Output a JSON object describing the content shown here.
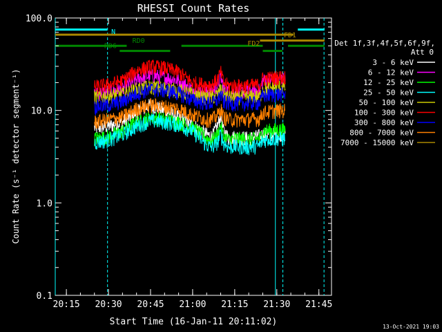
{
  "chart_data": {
    "type": "line",
    "title": "RHESSI Count Rates",
    "xlabel": "Start Time (16-Jan-11 20:11:02)",
    "ylabel": "Count Rate (s⁻¹ detector segment⁻¹)",
    "yscale": "log",
    "ylim": [
      0.1,
      100
    ],
    "xlim": [
      "20:11:02",
      "21:49:30"
    ],
    "y_tick_labels": [
      "0.1",
      "1.0",
      "10.0",
      "100.0"
    ],
    "y_ticks": [
      0.1,
      1,
      10,
      100
    ],
    "x_tick_labels": [
      "20:15",
      "20:30",
      "20:45",
      "21:00",
      "21:15",
      "21:30",
      "21:45"
    ],
    "x_ticks": [
      "20:15",
      "20:30",
      "20:45",
      "21:00",
      "21:15",
      "21:30",
      "21:45"
    ],
    "grid": false,
    "legend_position": "right",
    "legend_header": [
      "Det 1f,3f,4f,5f,6f,9f,",
      "Att 0"
    ],
    "timestamp": "13-Oct-2021 19:03",
    "series": [
      {
        "name": "3 - 6 keV",
        "color": "#ffffff",
        "times": [
          "20:25",
          "20:30",
          "20:35",
          "20:40",
          "20:45",
          "20:50",
          "20:55",
          "21:00",
          "21:05",
          "21:07",
          "21:09",
          "21:10",
          "21:11",
          "21:13",
          "21:15",
          "21:20",
          "21:24",
          "21:25",
          "21:30",
          "21:33"
        ],
        "values": [
          6.5,
          6.8,
          7.5,
          9.5,
          11.5,
          10,
          8.5,
          7,
          5.5,
          5.2,
          7,
          9,
          6,
          5,
          5.2,
          5,
          5.3,
          5.5,
          5.5,
          5.8
        ]
      },
      {
        "name": "6 - 12 keV",
        "color": "#ff00ff",
        "times": [
          "20:25",
          "20:30",
          "20:35",
          "20:40",
          "20:45",
          "20:50",
          "20:55",
          "21:00",
          "21:05",
          "21:07",
          "21:09",
          "21:10",
          "21:11",
          "21:13",
          "21:15",
          "21:20",
          "21:24",
          "21:25",
          "21:30",
          "21:33"
        ],
        "values": [
          15,
          16,
          17,
          22,
          24,
          23,
          21,
          17,
          16,
          16,
          19,
          23,
          18,
          16,
          16,
          16,
          16.5,
          21,
          22,
          22
        ]
      },
      {
        "name": "12 - 25 keV",
        "color": "#00ff00",
        "times": [
          "20:25",
          "20:30",
          "20:35",
          "20:40",
          "20:45",
          "20:50",
          "20:55",
          "21:00",
          "21:05",
          "21:07",
          "21:09",
          "21:10",
          "21:11",
          "21:13",
          "21:15",
          "21:20",
          "21:24",
          "21:25",
          "21:30",
          "21:33"
        ],
        "values": [
          5,
          5.2,
          6,
          7.5,
          8.5,
          8,
          7.5,
          6.5,
          5,
          4.8,
          5.5,
          7,
          5.2,
          4.8,
          5,
          4.9,
          5,
          6,
          6.2,
          6.2
        ]
      },
      {
        "name": "25 - 50 keV",
        "color": "#00ffff",
        "times": [
          "20:25",
          "20:30",
          "20:35",
          "20:40",
          "20:45",
          "20:50",
          "20:55",
          "21:00",
          "21:05",
          "21:07",
          "21:09",
          "21:10",
          "21:11",
          "21:13",
          "21:15",
          "21:20",
          "21:24",
          "21:25",
          "21:30",
          "21:33"
        ],
        "values": [
          4.5,
          4.8,
          5.5,
          6.8,
          7.8,
          7.5,
          7,
          6,
          4.2,
          4,
          4.6,
          5.6,
          4.5,
          4,
          4.1,
          4,
          4.2,
          4.8,
          5,
          5
        ]
      },
      {
        "name": "50 - 100 keV",
        "color": "#cccc00",
        "times": [
          "20:25",
          "20:30",
          "20:35",
          "20:40",
          "20:45",
          "20:50",
          "20:55",
          "21:00",
          "21:05",
          "21:07",
          "21:09",
          "21:10",
          "21:11",
          "21:13",
          "21:15",
          "21:20",
          "21:24",
          "21:25",
          "21:30",
          "21:33"
        ],
        "values": [
          14,
          14.5,
          15,
          17,
          18,
          17.5,
          16.5,
          15,
          14,
          14,
          15,
          17,
          15,
          14,
          14,
          14,
          14.2,
          17,
          18,
          18
        ]
      },
      {
        "name": "100 - 300 keV",
        "color": "#ff0000",
        "times": [
          "20:25",
          "20:30",
          "20:35",
          "20:40",
          "20:45",
          "20:50",
          "20:55",
          "21:00",
          "21:05",
          "21:07",
          "21:09",
          "21:10",
          "21:11",
          "21:13",
          "21:15",
          "21:20",
          "21:24",
          "21:25",
          "21:30",
          "21:33"
        ],
        "values": [
          18,
          19,
          21,
          27,
          30,
          29,
          26,
          20,
          19,
          19,
          22,
          26,
          20,
          18.5,
          18.5,
          18.5,
          19,
          22,
          23,
          23
        ]
      },
      {
        "name": "300 - 800 keV",
        "color": "#0000ff",
        "times": [
          "20:25",
          "20:30",
          "20:35",
          "20:40",
          "20:45",
          "20:50",
          "20:55",
          "21:00",
          "21:05",
          "21:07",
          "21:09",
          "21:10",
          "21:11",
          "21:13",
          "21:15",
          "21:20",
          "21:24",
          "21:25",
          "21:30",
          "21:33"
        ],
        "values": [
          11,
          11.5,
          12.5,
          15.5,
          17,
          16.5,
          15.5,
          13,
          12,
          12,
          13,
          15,
          12.5,
          12,
          12,
          12,
          12.2,
          14.5,
          15,
          15
        ]
      },
      {
        "name": "800 - 7000 keV",
        "color": "#ff8000",
        "times": [
          "20:25",
          "20:30",
          "20:35",
          "20:40",
          "20:45",
          "20:50",
          "20:55",
          "21:00",
          "21:05",
          "21:07",
          "21:09",
          "21:10",
          "21:11",
          "21:13",
          "21:15",
          "21:20",
          "21:24",
          "21:25",
          "21:30",
          "21:33"
        ],
        "values": [
          7.5,
          8,
          8.5,
          10.5,
          11.5,
          11,
          10.5,
          9,
          8,
          8,
          9,
          10.5,
          8.5,
          8,
          8,
          8,
          8.2,
          9.5,
          10,
          10
        ]
      },
      {
        "name": "7000 - 15000 keV",
        "color": "#aa8800",
        "times": [],
        "values": []
      }
    ],
    "flag_bars": [
      {
        "label": "N",
        "color": "#00ffff",
        "level": 75,
        "segments": [
          [
            "20:11:02",
            "20:29:30"
          ],
          [
            "21:37:30",
            "21:47:00"
          ]
        ]
      },
      {
        "label": "FD1",
        "color": "#aa8800",
        "level": 66,
        "segments": [
          [
            "20:11:02",
            "21:36:00"
          ]
        ]
      },
      {
        "label": "FD2",
        "color": "#aa8800",
        "level": 57,
        "segments": [
          [
            "21:24:00",
            "21:47:00"
          ]
        ]
      },
      {
        "label": "RD0",
        "color": "#008800",
        "level": 50,
        "segments": [
          [
            "20:11:02",
            "20:36:30"
          ],
          [
            "20:56:00",
            "21:25:00"
          ],
          [
            "21:34:00",
            "21:47:00"
          ]
        ]
      },
      {
        "label": "RD6",
        "color": "#008800",
        "level": 44,
        "segments": [
          [
            "20:34:00",
            "20:52:00"
          ],
          [
            "21:25:00",
            "21:32:00"
          ]
        ]
      }
    ],
    "vertical_lines": [
      {
        "time": "20:11:02",
        "style": "solid",
        "color": "#00ffff"
      },
      {
        "time": "20:29:40",
        "style": "dashed",
        "color": "#00ffff"
      },
      {
        "time": "21:29:30",
        "style": "solid",
        "color": "#00ffff"
      },
      {
        "time": "21:32:10",
        "style": "dashed",
        "color": "#00ffff"
      },
      {
        "time": "21:46:50",
        "style": "dashed",
        "color": "#00ffff"
      }
    ]
  }
}
